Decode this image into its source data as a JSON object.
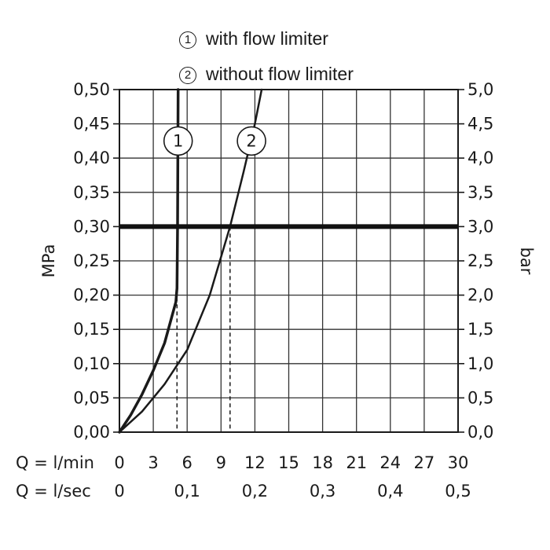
{
  "chart_data": {
    "type": "line",
    "legend": [
      {
        "marker": "1",
        "label": "with flow limiter"
      },
      {
        "marker": "2",
        "label": "without flow limiter"
      }
    ],
    "y_left": {
      "label": "MPa",
      "range": [
        0,
        0.5
      ],
      "ticks": [
        "0,00",
        "0,05",
        "0,10",
        "0,15",
        "0,20",
        "0,25",
        "0,30",
        "0,35",
        "0,40",
        "0,45",
        "0,50"
      ]
    },
    "y_right": {
      "label": "bar",
      "range": [
        0,
        5
      ],
      "ticks": [
        "0,0",
        "0,5",
        "1,0",
        "1,5",
        "2,0",
        "2,5",
        "3,0",
        "3,5",
        "4,0",
        "4,5",
        "5,0"
      ]
    },
    "x_axes": [
      {
        "label": "Q = l/min",
        "range": [
          0,
          30
        ],
        "ticks": [
          {
            "v": 0,
            "t": "0"
          },
          {
            "v": 3,
            "t": "3"
          },
          {
            "v": 6,
            "t": "6"
          },
          {
            "v": 9,
            "t": "9"
          },
          {
            "v": 12,
            "t": "12"
          },
          {
            "v": 15,
            "t": "15"
          },
          {
            "v": 18,
            "t": "18"
          },
          {
            "v": 21,
            "t": "21"
          },
          {
            "v": 24,
            "t": "24"
          },
          {
            "v": 27,
            "t": "27"
          },
          {
            "v": 30,
            "t": "30"
          }
        ]
      },
      {
        "label": "Q = l/sec",
        "range": [
          0,
          0.5
        ],
        "ticks": [
          {
            "v": 0,
            "t": "0"
          },
          {
            "v": 0.1,
            "t": "0,1"
          },
          {
            "v": 0.2,
            "t": "0,2"
          },
          {
            "v": 0.3,
            "t": "0,3"
          },
          {
            "v": 0.4,
            "t": "0,4"
          },
          {
            "v": 0.5,
            "t": "0,5"
          }
        ]
      }
    ],
    "grid": true,
    "reference_line": {
      "y": 0.3
    },
    "reference_drops": [
      {
        "x": 5.1
      },
      {
        "x": 9.8
      }
    ],
    "series": [
      {
        "name": "1",
        "label_point": {
          "x": 5.2,
          "y": 0.425
        },
        "x": [
          0,
          1,
          2,
          3,
          4,
          5,
          5.1,
          5.15,
          5.2
        ],
        "y": [
          0,
          0.025,
          0.055,
          0.09,
          0.13,
          0.19,
          0.21,
          0.3,
          0.5
        ]
      },
      {
        "name": "2",
        "label_point": {
          "x": 11.7,
          "y": 0.425
        },
        "x": [
          0,
          2,
          4,
          6,
          8,
          9.8,
          11,
          12,
          12.6
        ],
        "y": [
          0,
          0.03,
          0.07,
          0.12,
          0.2,
          0.3,
          0.38,
          0.45,
          0.5
        ]
      }
    ]
  }
}
